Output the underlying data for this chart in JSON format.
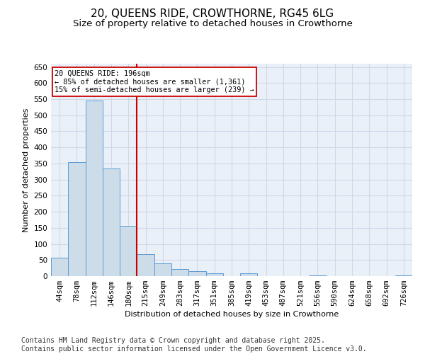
{
  "title1": "20, QUEENS RIDE, CROWTHORNE, RG45 6LG",
  "title2": "Size of property relative to detached houses in Crowthorne",
  "xlabel": "Distribution of detached houses by size in Crowthorne",
  "ylabel": "Number of detached properties",
  "categories": [
    "44sqm",
    "78sqm",
    "112sqm",
    "146sqm",
    "180sqm",
    "215sqm",
    "249sqm",
    "283sqm",
    "317sqm",
    "351sqm",
    "385sqm",
    "419sqm",
    "453sqm",
    "487sqm",
    "521sqm",
    "556sqm",
    "590sqm",
    "624sqm",
    "658sqm",
    "692sqm",
    "726sqm"
  ],
  "values": [
    58,
    355,
    545,
    335,
    157,
    68,
    40,
    22,
    15,
    9,
    0,
    9,
    0,
    0,
    0,
    2,
    0,
    0,
    0,
    0,
    3
  ],
  "bar_color": "#ccdce8",
  "bar_edge_color": "#5b9bd5",
  "red_line_color": "#cc0000",
  "annotation_text1": "20 QUEENS RIDE: 196sqm",
  "annotation_text2": "← 85% of detached houses are smaller (1,361)",
  "annotation_text3": "15% of semi-detached houses are larger (239) →",
  "annotation_box_color": "white",
  "annotation_box_edge": "#cc0000",
  "ylim": [
    0,
    660
  ],
  "yticks": [
    0,
    50,
    100,
    150,
    200,
    250,
    300,
    350,
    400,
    450,
    500,
    550,
    600,
    650
  ],
  "footnote": "Contains HM Land Registry data © Crown copyright and database right 2025.\nContains public sector information licensed under the Open Government Licence v3.0.",
  "bg_color": "#eaf0f8",
  "grid_color": "#d0d8e8",
  "title_fontsize": 11,
  "subtitle_fontsize": 9.5,
  "axis_fontsize": 8,
  "tick_fontsize": 7.5,
  "footnote_fontsize": 7
}
